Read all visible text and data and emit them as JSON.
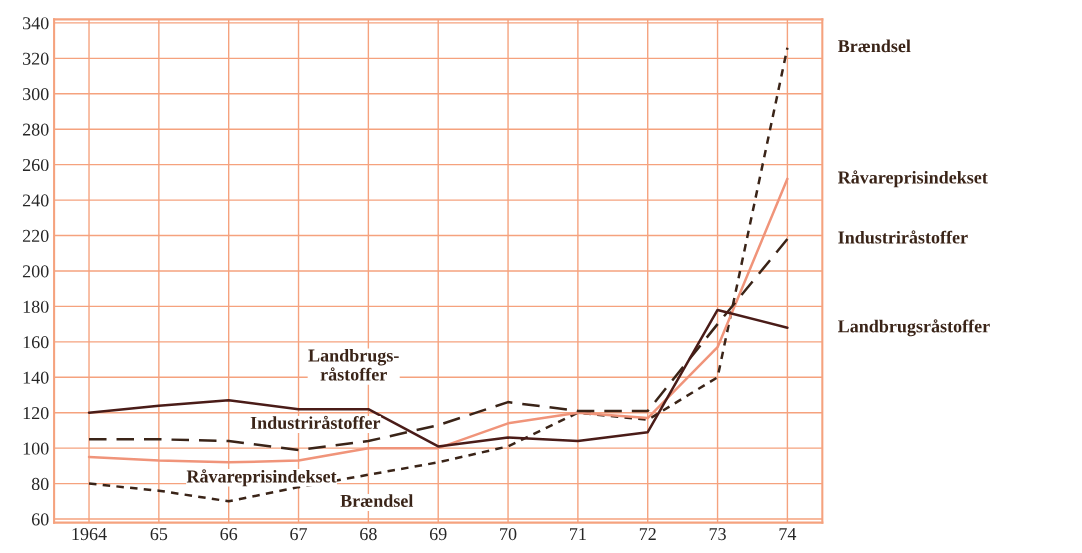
{
  "chart_data": {
    "type": "line",
    "x": [
      1964,
      1965,
      1966,
      1967,
      1968,
      1969,
      1970,
      1971,
      1972,
      1973,
      1974
    ],
    "xlim": [
      1963.5,
      1974.5
    ],
    "xticks": [
      {
        "value": 1964,
        "label": "1964"
      },
      {
        "value": 1965,
        "label": "65"
      },
      {
        "value": 1966,
        "label": "66"
      },
      {
        "value": 1967,
        "label": "67"
      },
      {
        "value": 1968,
        "label": "68"
      },
      {
        "value": 1969,
        "label": "69"
      },
      {
        "value": 1970,
        "label": "70"
      },
      {
        "value": 1971,
        "label": "71"
      },
      {
        "value": 1972,
        "label": "72"
      },
      {
        "value": 1973,
        "label": "73"
      },
      {
        "value": 1974,
        "label": "74"
      }
    ],
    "ylim": [
      58,
      342
    ],
    "yticks": [
      60,
      80,
      100,
      120,
      140,
      160,
      180,
      200,
      220,
      240,
      260,
      280,
      300,
      320,
      340
    ],
    "grid": true,
    "marker": "none",
    "legend": false,
    "series": [
      {
        "name": "Brændsel",
        "color": "#3a2418",
        "line_style": "dotted",
        "values": [
          80,
          76,
          70,
          78,
          85,
          92,
          101,
          120,
          116,
          140,
          326
        ]
      },
      {
        "name": "Råvareprisindekset",
        "color": "#f0947a",
        "line_style": "solid",
        "values": [
          95,
          93,
          92,
          93,
          100,
          100,
          114,
          120,
          117,
          157,
          252
        ]
      },
      {
        "name": "Industriråstoffer",
        "color": "#3a2418",
        "line_style": "dashed",
        "values": [
          105,
          105,
          104,
          99,
          104,
          113,
          126,
          121,
          121,
          170,
          218
        ]
      },
      {
        "name": "Landbrugsråstoffer",
        "color": "#4a1c18",
        "line_style": "solid",
        "values": [
          120,
          124,
          127,
          122,
          122,
          101,
          106,
          104,
          109,
          178,
          168
        ]
      }
    ],
    "annotations": [
      "Landbrugs-\nråstoffer",
      "Industriråstoffer",
      "Råvareprisindekset",
      "Brændsel"
    ]
  }
}
